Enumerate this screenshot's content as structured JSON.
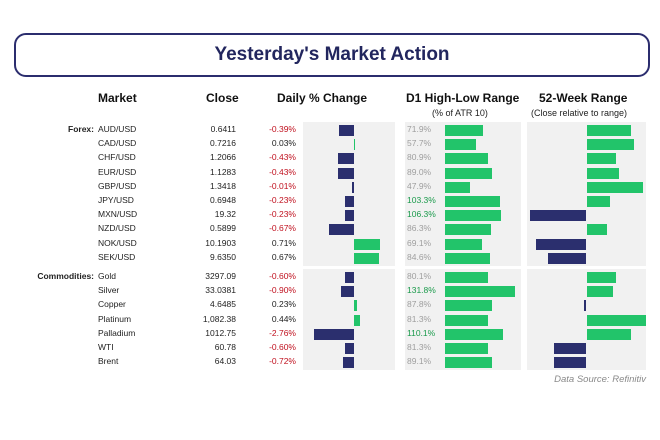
{
  "title": "Yesterday's Market Action",
  "headers": {
    "market": "Market",
    "close": "Close",
    "daily": "Daily % Change",
    "range": "D1 High-Low Range",
    "range_sub": "(% of ATR 10)",
    "week52": "52-Week Range",
    "week52_sub": "(Close relative to range)"
  },
  "source": "Data Source: Refinitiv",
  "colors": {
    "positive": "#22c46a",
    "negative": "#2b2f6e",
    "panel": "#f1f1f1",
    "neg_text": "#c0111f"
  },
  "chart_data": {
    "type": "table",
    "columns": [
      "Market",
      "Close",
      "Daily % Change",
      "D1 High-Low Range (% of ATR 10)",
      "52-Week Range (Close relative to range)"
    ],
    "groups": [
      {
        "name": "Forex:",
        "rows": [
          {
            "market": "AUD/USD",
            "close": "0.6411",
            "change": "-0.39%",
            "change_value": -0.39,
            "range": "71.9%",
            "range_value": 71.9,
            "week52": 0.75
          },
          {
            "market": "CAD/USD",
            "close": "0.7216",
            "change": "0.03%",
            "change_value": 0.03,
            "range": "57.7%",
            "range_value": 57.7,
            "week52": 0.8
          },
          {
            "market": "CHF/USD",
            "close": "1.2066",
            "change": "-0.43%",
            "change_value": -0.43,
            "range": "80.9%",
            "range_value": 80.9,
            "week52": 0.5
          },
          {
            "market": "EUR/USD",
            "close": "1.1283",
            "change": "-0.43%",
            "change_value": -0.43,
            "range": "89.0%",
            "range_value": 89.0,
            "week52": 0.55
          },
          {
            "market": "GBP/USD",
            "close": "1.3418",
            "change": "-0.01%",
            "change_value": -0.01,
            "range": "47.9%",
            "range_value": 47.9,
            "week52": 0.95
          },
          {
            "market": "JPY/USD",
            "close": "0.6948",
            "change": "-0.23%",
            "change_value": -0.23,
            "range": "103.3%",
            "range_value": 103.3,
            "week52": 0.4
          },
          {
            "market": "MXN/USD",
            "close": "19.32",
            "change": "-0.23%",
            "change_value": -0.23,
            "range": "106.3%",
            "range_value": 106.3,
            "week52": -0.95
          },
          {
            "market": "NZD/USD",
            "close": "0.5899",
            "change": "-0.67%",
            "change_value": -0.67,
            "range": "86.3%",
            "range_value": 86.3,
            "week52": 0.35
          },
          {
            "market": "NOK/USD",
            "close": "10.1903",
            "change": "0.71%",
            "change_value": 0.71,
            "range": "69.1%",
            "range_value": 69.1,
            "week52": -0.85
          },
          {
            "market": "SEK/USD",
            "close": "9.6350",
            "change": "0.67%",
            "change_value": 0.67,
            "range": "84.6%",
            "range_value": 84.6,
            "week52": -0.65
          }
        ]
      },
      {
        "name": "Commodities:",
        "rows": [
          {
            "market": "Gold",
            "close": "3297.09",
            "change": "-0.60%",
            "change_value": -0.6,
            "range": "80.1%",
            "range_value": 80.1,
            "week52": 0.5
          },
          {
            "market": "Silver",
            "close": "33.0381",
            "change": "-0.90%",
            "change_value": -0.9,
            "range": "131.8%",
            "range_value": 131.8,
            "week52": 0.45
          },
          {
            "market": "Copper",
            "close": "4.6485",
            "change": "0.23%",
            "change_value": 0.23,
            "range": "87.8%",
            "range_value": 87.8,
            "week52": -0.05
          },
          {
            "market": "Platinum",
            "close": "1,082.38",
            "change": "0.44%",
            "change_value": 0.44,
            "range": "81.3%",
            "range_value": 81.3,
            "week52": 1.0
          },
          {
            "market": "Palladium",
            "close": "1012.75",
            "change": "-2.76%",
            "change_value": -2.76,
            "range": "110.1%",
            "range_value": 110.1,
            "week52": 0.75
          },
          {
            "market": "WTI",
            "close": "60.78",
            "change": "-0.60%",
            "change_value": -0.6,
            "range": "81.3%",
            "range_value": 81.3,
            "week52": -0.55
          },
          {
            "market": "Brent",
            "close": "64.03",
            "change": "-0.72%",
            "change_value": -0.72,
            "range": "89.1%",
            "range_value": 89.1,
            "week52": -0.55
          }
        ]
      }
    ],
    "change_axis_range": [
      -2.76,
      2.76
    ],
    "range_axis_max": 131.8,
    "week52_axis_range": [
      -1,
      1
    ]
  }
}
